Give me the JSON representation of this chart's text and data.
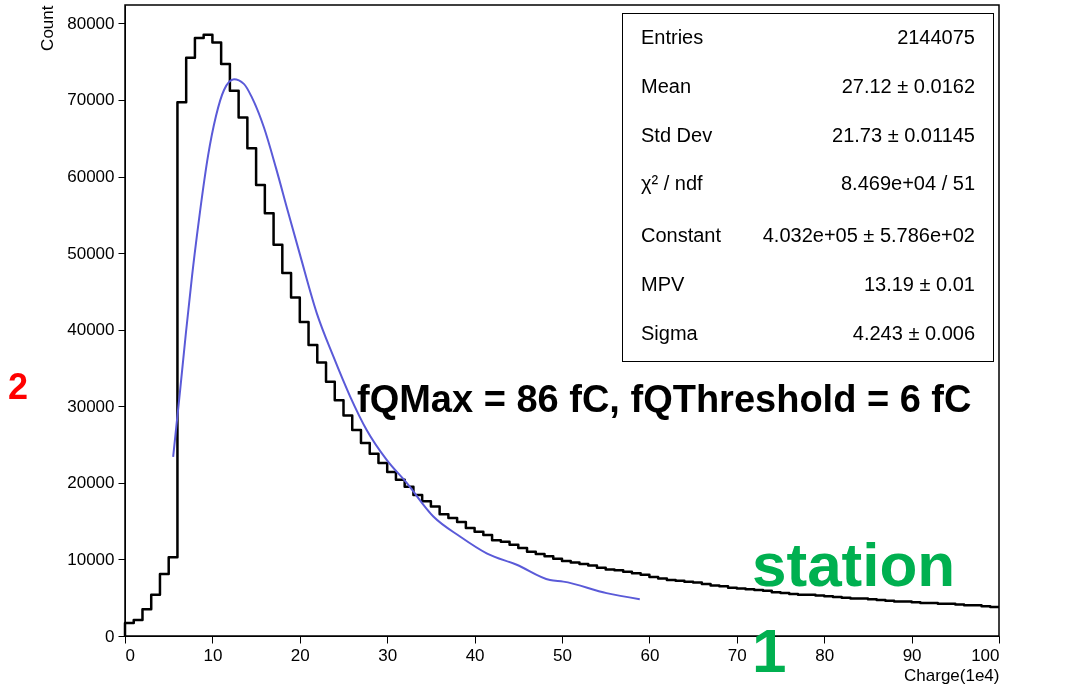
{
  "chart_data": {
    "type": "histogram",
    "xlabel": "Charge(1e4)",
    "ylabel": "Count",
    "xlim": [
      0,
      100
    ],
    "ylim": [
      0,
      82400
    ],
    "xticks": [
      0,
      10,
      20,
      30,
      40,
      50,
      60,
      70,
      80,
      90,
      100
    ],
    "yticks": [
      0,
      10000,
      20000,
      30000,
      40000,
      50000,
      60000,
      70000,
      80000
    ],
    "bins": [
      0,
      1,
      2,
      3,
      4,
      5,
      6,
      7,
      8,
      9,
      10,
      11,
      12,
      13,
      14,
      15,
      16,
      17,
      18,
      19,
      20,
      21,
      22,
      23,
      24,
      25,
      26,
      27,
      28,
      29,
      30,
      31,
      32,
      33,
      34,
      35,
      36,
      37,
      38,
      39,
      40,
      41,
      42,
      43,
      44,
      45,
      46,
      47,
      48,
      49,
      50,
      51,
      52,
      53,
      54,
      55,
      56,
      57,
      58,
      59,
      60,
      61,
      62,
      63,
      64,
      65,
      66,
      67,
      68,
      69,
      70,
      71,
      72,
      73,
      74,
      75,
      76,
      77,
      78,
      79,
      80,
      81,
      82,
      83,
      84,
      85,
      86,
      87,
      88,
      89,
      90,
      91,
      92,
      93,
      94,
      95,
      96,
      97,
      98,
      99,
      100
    ],
    "series": [
      {
        "color": "#000000",
        "values": [
          1700,
          2100,
          3500,
          5400,
          8100,
          10300,
          69700,
          75500,
          78100,
          78500,
          77500,
          74700,
          71200,
          67700,
          63700,
          58900,
          55200,
          51100,
          47400,
          44200,
          41000,
          38000,
          35700,
          33200,
          30800,
          28800,
          26900,
          25200,
          23800,
          22600,
          21400,
          20400,
          19500,
          18400,
          17600,
          16900,
          15900,
          15400,
          14900,
          14100,
          13600,
          13200,
          12500,
          12300,
          11900,
          11500,
          11000,
          10700,
          10400,
          10100,
          9800,
          9600,
          9400,
          9200,
          8900,
          8700,
          8600,
          8400,
          8200,
          8000,
          7700,
          7500,
          7300,
          7200,
          7100,
          7000,
          6800,
          6600,
          6500,
          6300,
          6200,
          6100,
          6000,
          5900,
          5700,
          5600,
          5500,
          5400,
          5400,
          5300,
          5200,
          5100,
          5000,
          4900,
          4900,
          4800,
          4700,
          4600,
          4500,
          4500,
          4400,
          4300,
          4300,
          4200,
          4200,
          4100,
          4000,
          4000,
          3900,
          3800
        ]
      },
      {
        "type": "line",
        "color": "#5a5ad8",
        "x": [
          5.51,
          6.29,
          6.98,
          7.67,
          8.58,
          9.5,
          10.41,
          11.33,
          12.47,
          13.6,
          14.53,
          15.9,
          17.28,
          18.65,
          20.02,
          21.93,
          23.84,
          25.75,
          27.65,
          29.94,
          32.23,
          35.28,
          38.33,
          41.38,
          44.82,
          48.63,
          50.15,
          55.1,
          58.9
        ],
        "values": [
          23400,
          31900,
          39700,
          47000,
          55400,
          62700,
          67900,
          71300,
          72700,
          72100,
          70300,
          66400,
          61100,
          55400,
          49800,
          42200,
          36500,
          31300,
          26900,
          23000,
          20000,
          15600,
          13000,
          10800,
          9300,
          7300,
          7100,
          5600,
          4800
        ]
      }
    ],
    "annotations": [
      "Entries",
      "2144075",
      "Mean",
      "27.12 ± 0.0162",
      "Std Dev",
      "21.73 ± 0.01145",
      "χ² / ndf",
      "8.469e+04 / 51",
      "Constant",
      "4.032e+05 ± 5.786e+02",
      "MPV",
      "13.19 ± 0.01",
      "Sigma",
      "4.243 ± 0.006",
      "fQMax = 86 fC, fQThreshold = 6 fC",
      "station 1",
      "2"
    ]
  }
}
